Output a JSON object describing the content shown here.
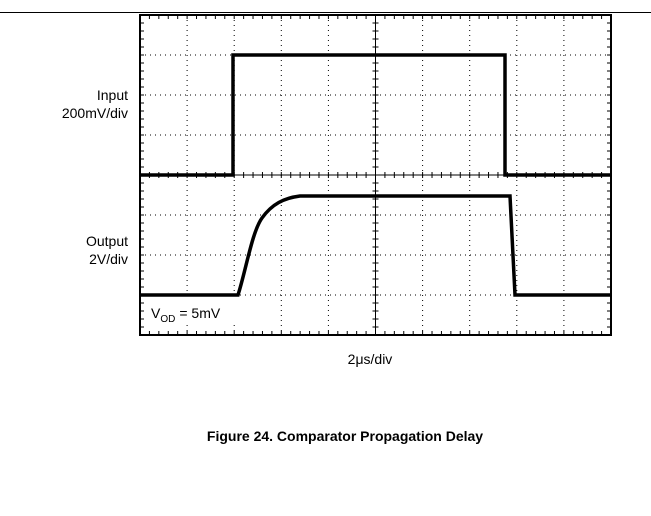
{
  "scope": {
    "channels": [
      {
        "name": "Input",
        "scale": "200mV/div"
      },
      {
        "name": "Output",
        "scale": "2V/div"
      }
    ],
    "time_scale": "2μs/div",
    "annotation": {
      "symbol": "V",
      "subscript": "OD",
      "text": "= 5mV"
    }
  },
  "caption": "Figure 24. Comparator Propagation Delay"
}
